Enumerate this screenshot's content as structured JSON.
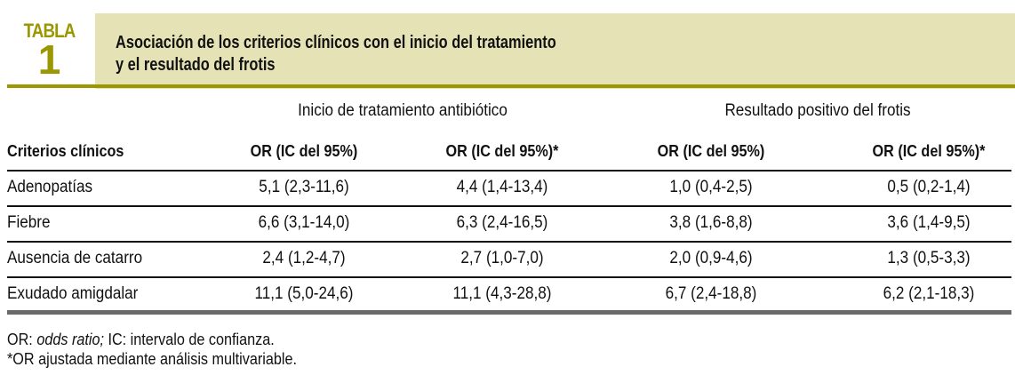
{
  "table": {
    "label": "TABLA",
    "number": "1",
    "title_line1": "Asociación de los criterios clínicos con el inicio del tratamiento",
    "title_line2": "y el resultado del frotis",
    "group_headers": [
      "Inicio de tratamiento antibiótico",
      "Resultado positivo del frotis"
    ],
    "column_headers": [
      "Criterios clínicos",
      "OR (IC del 95%)",
      "OR (IC del 95%)*",
      "OR (IC del 95%)",
      "OR (IC del 95%)*"
    ],
    "rows": [
      [
        "Adenopatías",
        "5,1 (2,3-11,6)",
        "4,4 (1,4-13,4)",
        "1,0 (0,4-2,5)",
        "0,5 (0,2-1,4)"
      ],
      [
        "Fiebre",
        "6,6 (3,1-14,0)",
        "6,3 (2,4-16,5)",
        "3,8 (1,6-8,8)",
        "3,6 (1,4-9,5)"
      ],
      [
        "Ausencia de catarro",
        "2,4 (1,2-4,7)",
        "2,7 (1,0-7,0)",
        "2,0 (0,9-4,6)",
        "1,3 (0,5-3,3)"
      ],
      [
        "Exudado amigdalar",
        "11,1 (5,0-24,6)",
        "11,1 (4,3-28,8)",
        "6,7 (2,4-18,8)",
        "6,2 (2,1-18,3)"
      ]
    ],
    "footnote1_prefix": "OR: ",
    "footnote1_italic": "odds ratio;",
    "footnote1_suffix": " IC: intervalo de confianza.",
    "footnote2": "*OR ajustada mediante análisis multivariable."
  },
  "colors": {
    "accent": "#9a9700",
    "band": "#e5e3b5"
  }
}
